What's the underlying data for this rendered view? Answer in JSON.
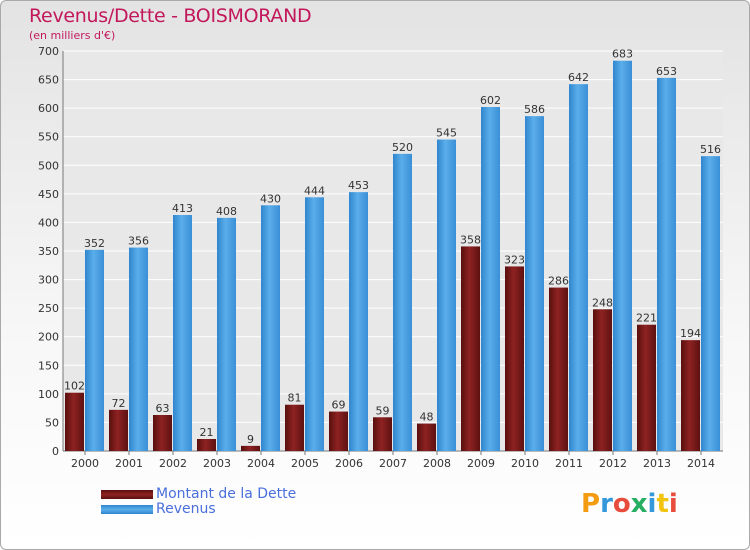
{
  "title": "Revenus/Dette - BOISMORAND",
  "subtitle": "(en milliers d'€)",
  "brand": "Proxiti",
  "colors": {
    "debt": "#7a1818",
    "revenue": "#4fa3e6",
    "title": "#c2185b",
    "legend_text": "#4a6fdc"
  },
  "legend": [
    {
      "label": "Montant de la Dette",
      "color": "#7a1818"
    },
    {
      "label": "Revenus",
      "color": "#4fa3e6"
    }
  ],
  "chart_data": {
    "type": "bar",
    "categories": [
      "2000",
      "2001",
      "2002",
      "2003",
      "2004",
      "2005",
      "2006",
      "2007",
      "2008",
      "2009",
      "2010",
      "2011",
      "2012",
      "2013",
      "2014"
    ],
    "series": [
      {
        "name": "Montant de la Dette",
        "values": [
          102,
          72,
          63,
          21,
          9,
          81,
          69,
          59,
          48,
          358,
          323,
          286,
          248,
          221,
          194
        ]
      },
      {
        "name": "Revenus",
        "values": [
          352,
          356,
          413,
          408,
          430,
          444,
          453,
          520,
          545,
          602,
          586,
          642,
          683,
          653,
          516
        ]
      }
    ],
    "ylim": [
      0,
      700
    ],
    "yticks": [
      0,
      50,
      100,
      150,
      200,
      250,
      300,
      350,
      400,
      450,
      500,
      550,
      600,
      650,
      700
    ],
    "grid": true,
    "legend_position": "bottom-left"
  }
}
